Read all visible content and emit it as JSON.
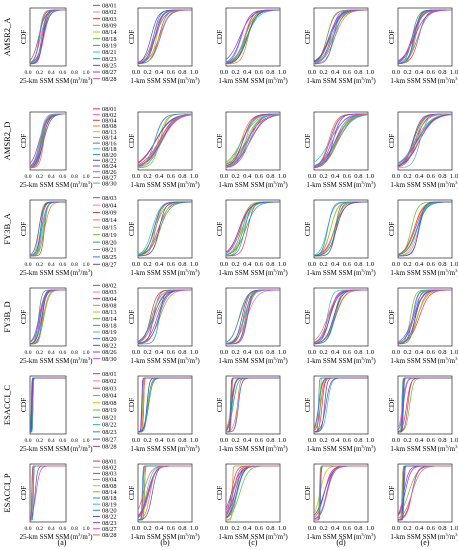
{
  "chart_data": {
    "type": "line",
    "rows": [
      {
        "product": "AMSR2_A",
        "dates": [
          "08/01",
          "08/02",
          "08/03",
          "08/09",
          "08/14",
          "08/18",
          "08/19",
          "08/21",
          "08/23",
          "08/25",
          "08/27",
          "08/28"
        ],
        "profile": {
          "a": {
            "c": 0.3,
            "s": 0.07,
            "k": 0.0
          },
          "b": {
            "c": 0.33,
            "s": 0.08,
            "k": 0.0
          }
        }
      },
      {
        "product": "AMSR2_D",
        "dates": [
          "08/01",
          "08/02",
          "08/04",
          "08/08",
          "08/13",
          "08/14",
          "08/16",
          "08/18",
          "08/20",
          "08/22",
          "08/24",
          "08/26",
          "08/27",
          "08/30"
        ],
        "profile": {
          "a": {
            "c": 0.3,
            "s": 0.09,
            "k": 0.0
          },
          "b": {
            "c": 0.36,
            "s": 0.11,
            "k": 0.0
          }
        }
      },
      {
        "product": "FY3B_A",
        "dates": [
          "08/03",
          "08/04",
          "08/09",
          "08/14",
          "08/15",
          "08/19",
          "08/20",
          "08/21",
          "08/25",
          "08/27"
        ],
        "profile": {
          "a": {
            "c": 0.33,
            "s": 0.06,
            "k": 0.0
          },
          "b": {
            "c": 0.33,
            "s": 0.07,
            "k": 0.0
          }
        }
      },
      {
        "product": "FY3B_D",
        "dates": [
          "08/02",
          "08/03",
          "08/04",
          "08/08",
          "08/13",
          "08/14",
          "08/18",
          "08/19",
          "08/20",
          "08/22",
          "08/26",
          "08/30"
        ],
        "profile": {
          "a": {
            "c": 0.3,
            "s": 0.06,
            "k": 0.0
          },
          "b": {
            "c": 0.32,
            "s": 0.07,
            "k": 0.0
          }
        }
      },
      {
        "product": "ESACCI_C",
        "dates": [
          "08/01",
          "08/02",
          "08/03",
          "08/04",
          "08/08",
          "08/19",
          "08/21",
          "08/22",
          "08/23",
          "08/27",
          "08/28"
        ],
        "profile": {
          "a": {
            "c": 0.11,
            "s": 0.02,
            "k": 0.9
          },
          "b": {
            "c": 0.17,
            "s": 0.03,
            "k": 0.3
          }
        }
      },
      {
        "product": "ESACCI_P",
        "dates": [
          "08/01",
          "08/02",
          "08/03",
          "08/04",
          "08/08",
          "08/14",
          "08/18",
          "08/19",
          "08/20",
          "08/22",
          "08/23",
          "08/27",
          "08/28"
        ],
        "profile": {
          "a": {
            "c": 0.13,
            "s": 0.04,
            "k": 0.8
          },
          "b": {
            "c": 0.18,
            "s": 0.06,
            "k": 0.3
          }
        }
      }
    ],
    "columns": [
      "(a)",
      "(b)",
      "(c)",
      "(d)",
      "(e)"
    ],
    "ylabel": "CDF",
    "xlabel_25km": "25-km SSM",
    "xlabel_1km": "1-km SSM",
    "xlabel_unit": "(m",
    "xlabel_unit_sup1": "3",
    "xlabel_unit_mid": "/m",
    "xlabel_unit_sup2": "3",
    "xlabel_unit_end": ")",
    "xticks": [
      "0.0",
      "0.2",
      "0.4",
      "0.6",
      "0.8",
      "1.0"
    ],
    "xlim": [
      0,
      1.0
    ],
    "ylim": [
      0,
      1.0
    ],
    "palette": [
      "#e0218a",
      "#ff66cc",
      "#d04040",
      "#e08030",
      "#c8c000",
      "#60c030",
      "#20a080",
      "#30c0c0",
      "#3080e0",
      "#5050c0",
      "#9040c0",
      "#c050d0",
      "#d07070",
      "#70a0d0",
      "#b0b0b0",
      "#e070e0"
    ]
  }
}
